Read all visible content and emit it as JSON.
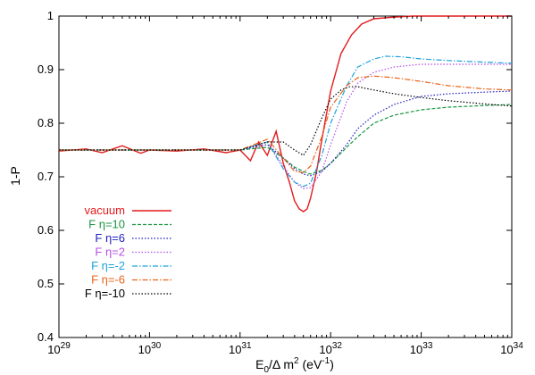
{
  "chart_data": {
    "type": "line",
    "xlabel": "E",
    "xlabel_sub": "0",
    "xlabel_rest": "/Δ m",
    "xlabel_sup": "2",
    "xlabel_unit": " (eV",
    "xlabel_unit_sup": "-1",
    "xlabel_unit_end": ")",
    "ylabel": "1-P",
    "x_scale": "log",
    "xlim": [
      1e+29,
      1e+34
    ],
    "ylim": [
      0.4,
      1.0
    ],
    "grid": false,
    "legend_position": "bottom-left",
    "x_ticks": [
      {
        "base": "10",
        "exp": "29",
        "value": 1e+29
      },
      {
        "base": "10",
        "exp": "30",
        "value": 1e+30
      },
      {
        "base": "10",
        "exp": "31",
        "value": 1e+31
      },
      {
        "base": "10",
        "exp": "32",
        "value": 1e+32
      },
      {
        "base": "10",
        "exp": "33",
        "value": 1e+33
      },
      {
        "base": "10",
        "exp": "34",
        "value": 1e+34
      }
    ],
    "y_ticks": [
      {
        "label": "0.4",
        "value": 0.4
      },
      {
        "label": "0.5",
        "value": 0.5
      },
      {
        "label": "0.6",
        "value": 0.6
      },
      {
        "label": "0.7",
        "value": 0.7
      },
      {
        "label": "0.8",
        "value": 0.8
      },
      {
        "label": "0.9",
        "value": 0.9
      },
      {
        "label": "1",
        "value": 1.0
      }
    ],
    "series": [
      {
        "name": "vacuum",
        "color": "#e41a1c",
        "dash": "solid",
        "x": [
          1e+29,
          2e+29,
          3e+29,
          5e+29,
          8e+29,
          1e+30,
          2e+30,
          4e+30,
          7e+30,
          1e+31,
          1.3e+31,
          1.6e+31,
          2e+31,
          2.5e+31,
          3e+31,
          3.5e+31,
          4e+31,
          4.5e+31,
          5e+31,
          5.5e+31,
          6e+31,
          7e+31,
          8e+31,
          1e+32,
          1.3e+32,
          1.7e+32,
          2.2e+32,
          3e+32,
          5e+32,
          8e+32,
          1e+33,
          2e+33,
          5e+33,
          1e+34
        ],
        "y": [
          0.748,
          0.752,
          0.745,
          0.758,
          0.744,
          0.75,
          0.748,
          0.752,
          0.745,
          0.75,
          0.73,
          0.765,
          0.74,
          0.785,
          0.725,
          0.69,
          0.655,
          0.64,
          0.635,
          0.64,
          0.66,
          0.71,
          0.77,
          0.86,
          0.93,
          0.965,
          0.985,
          0.995,
          0.998,
          1.0,
          1.0,
          1.0,
          1.0,
          1.0
        ]
      },
      {
        "name": "F η=10",
        "color": "#1a9641",
        "dash": "dashed",
        "x": [
          1e+29,
          5e+29,
          1e+30,
          5e+30,
          1e+31,
          2e+31,
          3e+31,
          4e+31,
          5e+31,
          6e+31,
          8e+31,
          1e+32,
          1.5e+32,
          2e+32,
          3e+32,
          5e+32,
          1e+33,
          2e+33,
          5e+33,
          1e+34
        ],
        "y": [
          0.75,
          0.75,
          0.75,
          0.75,
          0.75,
          0.755,
          0.735,
          0.718,
          0.71,
          0.705,
          0.712,
          0.725,
          0.755,
          0.775,
          0.8,
          0.815,
          0.825,
          0.83,
          0.833,
          0.835
        ]
      },
      {
        "name": "F η=6",
        "color": "#1f1fbf",
        "dash": "dotted",
        "x": [
          1e+29,
          5e+29,
          1e+30,
          5e+30,
          1e+31,
          2e+31,
          3e+31,
          4e+31,
          5e+31,
          6e+31,
          8e+31,
          1e+32,
          1.5e+32,
          2e+32,
          3e+32,
          5e+32,
          1e+33,
          2e+33,
          5e+33,
          1e+34
        ],
        "y": [
          0.75,
          0.75,
          0.75,
          0.75,
          0.75,
          0.76,
          0.735,
          0.715,
          0.705,
          0.702,
          0.71,
          0.725,
          0.76,
          0.79,
          0.815,
          0.835,
          0.85,
          0.855,
          0.858,
          0.86
        ]
      },
      {
        "name": "F η=2",
        "color": "#b44fe8",
        "dash": "dotted",
        "x": [
          1e+29,
          5e+29,
          1e+30,
          5e+30,
          1e+31,
          2e+31,
          3e+31,
          4e+31,
          5e+31,
          6e+31,
          8e+31,
          1e+32,
          1.5e+32,
          2e+32,
          3e+32,
          5e+32,
          1e+33,
          2e+33,
          5e+33,
          1e+34
        ],
        "y": [
          0.75,
          0.75,
          0.75,
          0.75,
          0.75,
          0.765,
          0.72,
          0.69,
          0.678,
          0.68,
          0.71,
          0.76,
          0.84,
          0.875,
          0.895,
          0.905,
          0.91,
          0.91,
          0.91,
          0.91
        ]
      },
      {
        "name": "F η=-2",
        "color": "#1fa3d9",
        "dash": "dashdot",
        "x": [
          1e+29,
          5e+29,
          1e+30,
          5e+30,
          1e+31,
          2e+31,
          3e+31,
          4e+31,
          5e+31,
          6e+31,
          8e+31,
          1e+32,
          1.5e+32,
          2e+32,
          3e+32,
          4e+32,
          6e+32,
          1e+33,
          2e+33,
          5e+33,
          1e+34
        ],
        "y": [
          0.75,
          0.75,
          0.75,
          0.75,
          0.75,
          0.765,
          0.715,
          0.69,
          0.682,
          0.688,
          0.74,
          0.8,
          0.87,
          0.905,
          0.92,
          0.925,
          0.924,
          0.92,
          0.917,
          0.914,
          0.912
        ]
      },
      {
        "name": "F η=-6",
        "color": "#e8641a",
        "dash": "dashdot",
        "x": [
          1e+29,
          5e+29,
          1e+30,
          5e+30,
          1e+31,
          2e+31,
          3e+31,
          4e+31,
          5e+31,
          6e+31,
          8e+31,
          1e+32,
          1.5e+32,
          2e+32,
          3e+32,
          5e+32,
          1e+33,
          2e+33,
          5e+33,
          1e+34
        ],
        "y": [
          0.75,
          0.75,
          0.75,
          0.75,
          0.75,
          0.77,
          0.735,
          0.71,
          0.708,
          0.72,
          0.775,
          0.83,
          0.87,
          0.885,
          0.888,
          0.885,
          0.878,
          0.87,
          0.864,
          0.862
        ]
      },
      {
        "name": "F η=-10",
        "color": "#000000",
        "dash": "dotted",
        "x": [
          1e+29,
          5e+29,
          1e+30,
          5e+30,
          1e+31,
          2e+31,
          3e+31,
          4e+31,
          5e+31,
          6e+31,
          8e+31,
          1e+32,
          1.3e+32,
          1.6e+32,
          2e+32,
          3e+32,
          5e+32,
          1e+33,
          2e+33,
          5e+33,
          1e+34
        ],
        "y": [
          0.75,
          0.75,
          0.75,
          0.75,
          0.75,
          0.765,
          0.765,
          0.75,
          0.74,
          0.76,
          0.81,
          0.845,
          0.862,
          0.868,
          0.868,
          0.862,
          0.855,
          0.848,
          0.842,
          0.836,
          0.832
        ]
      }
    ]
  }
}
